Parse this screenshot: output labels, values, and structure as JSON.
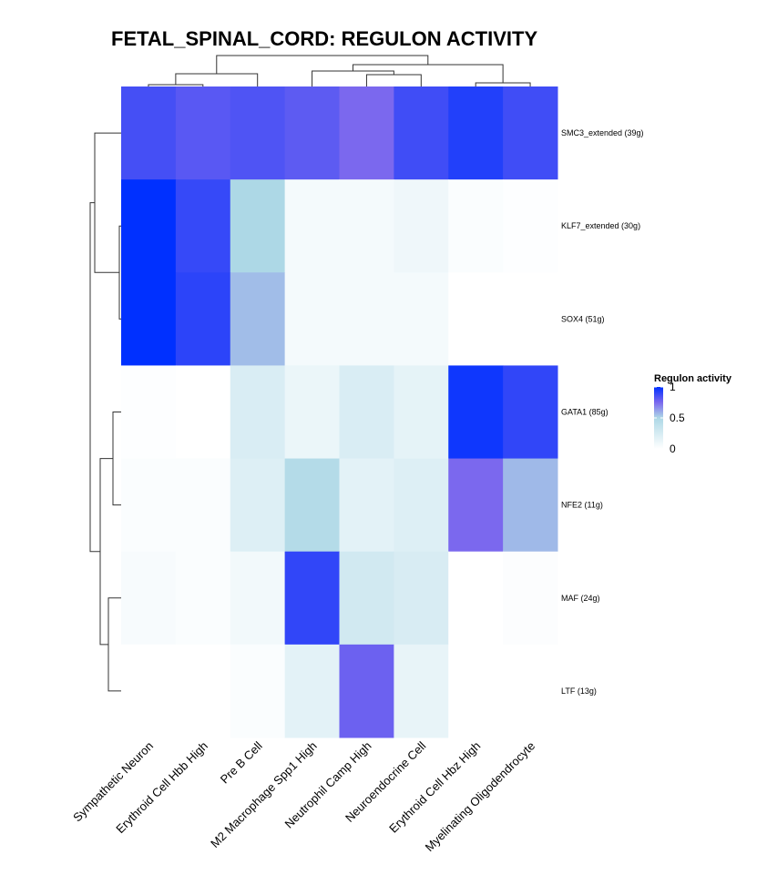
{
  "chart_data": {
    "type": "heatmap",
    "title": "FETAL_SPINAL_CORD: REGULON ACTIVITY",
    "columns": [
      "Sympathetic Neuron",
      "Erythroid Cell Hbb High",
      "Pre B Cell",
      "M2 Macrophage Spp1 High",
      "Neutrophil Camp High",
      "Neuroendocrine Cell",
      "Erythroid Cell Hbz High",
      "Myelinating Oligodendrocyte"
    ],
    "rows": [
      "SMC3_extended (39g)",
      "KLF7_extended (30g)",
      "SOX4 (51g)",
      "GATA1 (85g)",
      "NFE2 (11g)",
      "MAF (24g)",
      "LTF (13g)"
    ],
    "values": [
      [
        0.86,
        0.82,
        0.84,
        0.81,
        0.75,
        0.87,
        0.93,
        0.87
      ],
      [
        1.0,
        0.89,
        0.5,
        0.07,
        0.07,
        0.1,
        0.03,
        0.01
      ],
      [
        1.0,
        0.91,
        0.56,
        0.07,
        0.07,
        0.07,
        0.0,
        0.0
      ],
      [
        0.01,
        0.0,
        0.23,
        0.12,
        0.23,
        0.16,
        0.97,
        0.9
      ],
      [
        0.03,
        0.03,
        0.21,
        0.46,
        0.17,
        0.21,
        0.75,
        0.57
      ],
      [
        0.05,
        0.03,
        0.08,
        0.9,
        0.28,
        0.24,
        0.0,
        0.02
      ],
      [
        0.0,
        0.0,
        0.03,
        0.17,
        0.78,
        0.14,
        0.0,
        0.0
      ]
    ],
    "column_dendrogram": true,
    "row_dendrogram": true,
    "legend": {
      "title": "Regulon activity",
      "ticks": [
        "0",
        "0.5",
        "1"
      ],
      "placement": "right"
    },
    "color_scale": {
      "range": [
        0,
        1
      ],
      "stops": [
        [
          0,
          "#ffffff"
        ],
        [
          0.5,
          "#add8e6"
        ],
        [
          0.75,
          "#7b68ee"
        ],
        [
          1,
          "#0030ff"
        ]
      ]
    }
  }
}
